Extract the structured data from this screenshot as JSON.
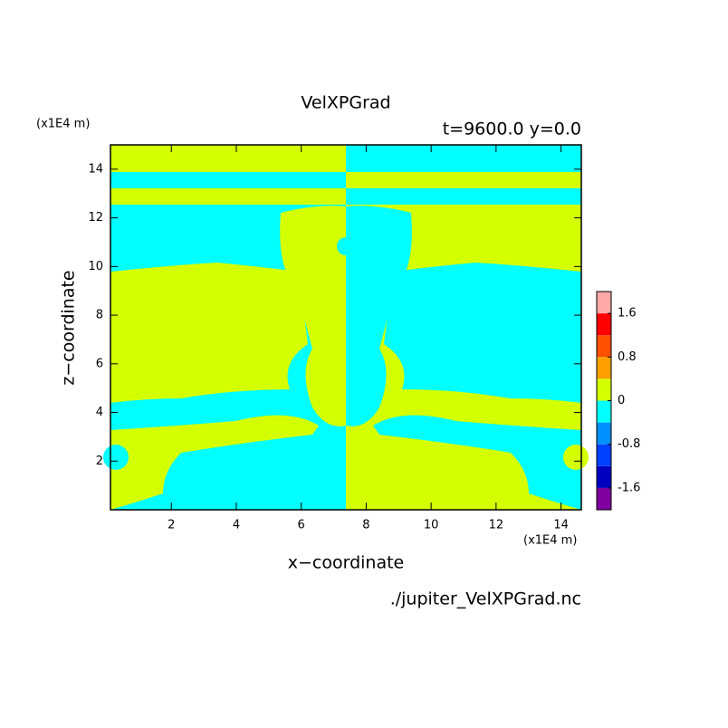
{
  "chart_data": {
    "type": "contour",
    "title": "VelXPGrad",
    "subtitle": "t=9600.0 y=0.0",
    "x_label": "x−coordinate",
    "y_label": "z−coordinate",
    "x_unit": "(x1E4 m)",
    "y_unit": "(x1E4 m)",
    "source": "./jupiter_VelXPGrad.nc",
    "xlim": [
      0.125,
      14.625
    ],
    "ylim": [
      0,
      15
    ],
    "xticks": [
      2,
      4,
      6,
      8,
      10,
      12,
      14
    ],
    "yticks": [
      2,
      4,
      6,
      8,
      10,
      12,
      14
    ],
    "colorbar": {
      "levels": [
        -2.0,
        -1.6,
        -1.2,
        -0.8,
        -0.4,
        0,
        0.4,
        0.8,
        1.2,
        1.6,
        2.0
      ],
      "colors": [
        "#8000a0",
        "#0000c0",
        "#0040ff",
        "#0090ff",
        "#00ffff",
        "#d4ff00",
        "#ffa000",
        "#ff5000",
        "#ff0000",
        "#ffa8a8"
      ],
      "ticks": [
        -1.6,
        -0.8,
        0,
        0.8,
        1.6
      ]
    }
  }
}
